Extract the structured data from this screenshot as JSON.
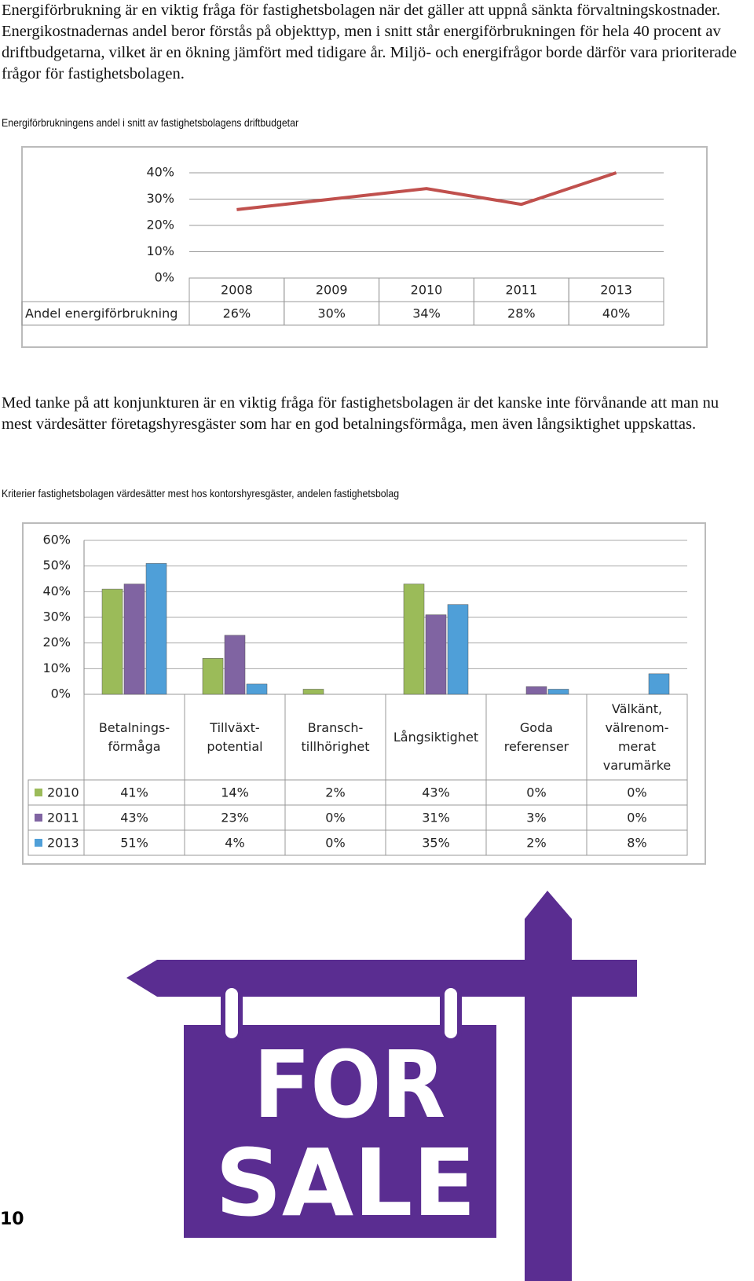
{
  "paragraphs": [
    "Energiförbrukning är en viktig fråga för fastighetsbolagen när det gäller att uppnå sänkta förvaltningskostnader. Energikostnadernas andel beror förstås på objekttyp, men i snitt står energiförbrukningen för hela 40 procent av driftbudgetarna, vilket är en ökning jämfört med tidigare år. Miljö- och energifrågor borde därför vara prioriterade frågor för fastighetsbolagen.",
    "Med tanke på att konjunkturen är en viktig fråga för fastighetsbolagen är det kanske inte förvånande att man nu mest värdesätter företagshyresgäster som har en god betalningsförmåga, men även långsiktighet uppskattas."
  ],
  "captions": [
    "Energiförbrukningens andel i snitt av fastighetsbolagens driftbudgetar",
    "Kriterier fastighetsbolagen värdesätter mest hos kontorshyresgäster, andelen fastighetsbolag"
  ],
  "chart_data": [
    {
      "type": "line",
      "categories": [
        "2008",
        "2009",
        "2010",
        "2011",
        "2013"
      ],
      "series": [
        {
          "name": "Andel energiförbrukning",
          "color": "#c0504d",
          "values": [
            26,
            30,
            34,
            28,
            40
          ],
          "value_labels": [
            "26%",
            "30%",
            "34%",
            "28%",
            "40%"
          ]
        }
      ],
      "ylim": [
        0,
        40
      ],
      "yticks": [
        {
          "value": 0,
          "label": "0%"
        },
        {
          "value": 10,
          "label": "10%"
        },
        {
          "value": 20,
          "label": "20%"
        },
        {
          "value": 30,
          "label": "30%"
        },
        {
          "value": 40,
          "label": "40%"
        }
      ],
      "grid": true
    },
    {
      "type": "bar",
      "categories": [
        "Betalnings-\nförmåga",
        "Tillväxt-\npotential",
        "Bransch-\ntillhörighet",
        "Långsiktighet",
        "Goda\nreferenser",
        "Välkänt,\nvälrenom-\nmerat\nvarumärke"
      ],
      "series": [
        {
          "name": "2010",
          "color": "#9bbb59",
          "values": [
            41,
            14,
            2,
            43,
            0,
            0
          ],
          "value_labels": [
            "41%",
            "14%",
            "2%",
            "43%",
            "0%",
            "0%"
          ]
        },
        {
          "name": "2011",
          "color": "#8064a2",
          "values": [
            43,
            23,
            0,
            31,
            3,
            0
          ],
          "value_labels": [
            "43%",
            "23%",
            "0%",
            "31%",
            "3%",
            "0%"
          ]
        },
        {
          "name": "2013",
          "color": "#4f9fd8",
          "values": [
            51,
            4,
            0,
            35,
            2,
            8
          ],
          "value_labels": [
            "51%",
            "4%",
            "0%",
            "35%",
            "2%",
            "8%"
          ]
        }
      ],
      "ylim": [
        0,
        60
      ],
      "yticks": [
        {
          "value": 0,
          "label": "0%"
        },
        {
          "value": 10,
          "label": "10%"
        },
        {
          "value": 20,
          "label": "20%"
        },
        {
          "value": 30,
          "label": "30%"
        },
        {
          "value": 40,
          "label": "40%"
        },
        {
          "value": 50,
          "label": "50%"
        },
        {
          "value": 60,
          "label": "60%"
        }
      ],
      "grid": true
    }
  ],
  "sign": {
    "line1": "FOR",
    "line2": "SALE"
  },
  "page_number": "10"
}
